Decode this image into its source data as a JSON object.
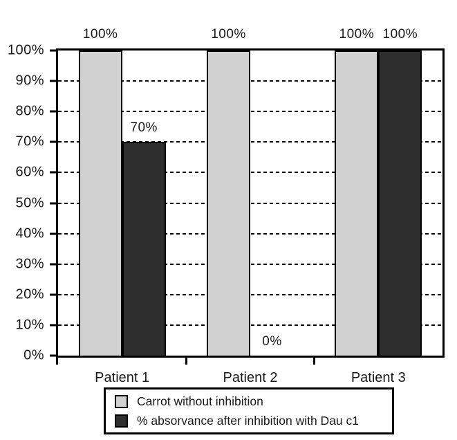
{
  "figure": {
    "background": "#ffffff",
    "line_color": "#000000"
  },
  "chart_data": {
    "type": "bar",
    "categories": [
      "Patient 1",
      "Patient 2",
      "Patient 3"
    ],
    "series": [
      {
        "name": "Carrot without inhibition",
        "color": "#d1d1d1",
        "values": [
          100,
          100,
          100
        ]
      },
      {
        "name": "% absorvance after inhibition with Dau c1",
        "color": "#2e2e2e",
        "values": [
          70,
          0,
          100
        ]
      }
    ],
    "value_labels": [
      [
        "100%",
        "100%",
        "100%"
      ],
      [
        "70%",
        "0%",
        "100%"
      ]
    ],
    "ylim": [
      0,
      100
    ],
    "y_tick_step": 10,
    "y_tick_labels": [
      "0%",
      "10%",
      "20%",
      "30%",
      "40%",
      "50%",
      "60%",
      "70%",
      "80%",
      "90%",
      "100%"
    ],
    "grid": "horizontal-dashed",
    "legend_position": "bottom"
  }
}
